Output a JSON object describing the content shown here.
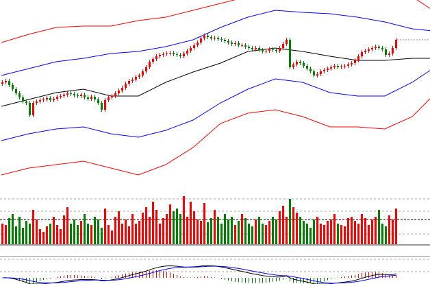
{
  "chart_data": {
    "type": "candlestick",
    "title": "",
    "grid": false,
    "colors": {
      "up": "#ff0000",
      "down": "#008000",
      "mid_band": "#000000",
      "inner_band": "#0000ff",
      "outer_band": "#ff0000",
      "dif": "#000000",
      "dea": "#0000ff",
      "last_price_line": "#888888"
    },
    "close": [
      180,
      182,
      176,
      170,
      164,
      158,
      152,
      150,
      132,
      150,
      152,
      154,
      155,
      157,
      154,
      156,
      159,
      160,
      162,
      164,
      163,
      161,
      160,
      162,
      158,
      156,
      159,
      155,
      150,
      140,
      154,
      158,
      160,
      164,
      168,
      172,
      178,
      182,
      184,
      188,
      190,
      196,
      202,
      210,
      214,
      218,
      220,
      221,
      222,
      223,
      221,
      220,
      218,
      222,
      226,
      230,
      234,
      238,
      244,
      248,
      246,
      244,
      245,
      243,
      242,
      240,
      238,
      236,
      237,
      234,
      234,
      232,
      230,
      228,
      230,
      227,
      225,
      226,
      228,
      227,
      226,
      230,
      236,
      242,
      202,
      206,
      210,
      208,
      204,
      200,
      196,
      190,
      192,
      196,
      198,
      200,
      202,
      204,
      202,
      203,
      204,
      206,
      208,
      212,
      218,
      224,
      226,
      228,
      230,
      232,
      230,
      228,
      220,
      222,
      230,
      242
    ],
    "volume": [
      30,
      28,
      38,
      44,
      26,
      40,
      24,
      34,
      30,
      50,
      36,
      22,
      18,
      26,
      30,
      40,
      28,
      22,
      42,
      54,
      30,
      36,
      28,
      34,
      44,
      30,
      28,
      40,
      36,
      24,
      52,
      28,
      20,
      40,
      48,
      30,
      36,
      26,
      44,
      30,
      34,
      46,
      54,
      40,
      62,
      50,
      30,
      38,
      44,
      58,
      48,
      52,
      44,
      70,
      40,
      62,
      48,
      36,
      34,
      60,
      32,
      38,
      50,
      40,
      30,
      44,
      36,
      40,
      28,
      34,
      44,
      38,
      30,
      26,
      36,
      40,
      30,
      28,
      34,
      40,
      36,
      48,
      56,
      40,
      66,
      54,
      46,
      40,
      34,
      30,
      24,
      36,
      40,
      30,
      28,
      34,
      36,
      44,
      30,
      28,
      26,
      38,
      40,
      34,
      30,
      44,
      38,
      28,
      36,
      40,
      50,
      30,
      26,
      42,
      36,
      52
    ],
    "bands": {
      "x_index": [
        0,
        8,
        16,
        24,
        32,
        40,
        48,
        56,
        64,
        72,
        80,
        88,
        96,
        104,
        112,
        120,
        126
      ],
      "outer_upper": [
        238,
        250,
        260,
        262,
        262,
        270,
        275,
        285,
        295,
        305,
        310,
        310,
        310,
        310,
        312,
        305,
        285
      ],
      "inner_upper": [
        190,
        200,
        210,
        215,
        222,
        225,
        232,
        242,
        260,
        275,
        285,
        282,
        280,
        275,
        268,
        258,
        255
      ],
      "middle": [
        145,
        155,
        165,
        170,
        160,
        160,
        180,
        195,
        208,
        225,
        230,
        225,
        218,
        212,
        212,
        215,
        215
      ],
      "inner_lower": [
        95,
        105,
        112,
        115,
        105,
        100,
        110,
        125,
        150,
        170,
        185,
        180,
        165,
        160,
        160,
        180,
        200
      ],
      "outer_lower": [
        45,
        55,
        60,
        65,
        55,
        45,
        60,
        85,
        120,
        135,
        140,
        130,
        115,
        115,
        112,
        130,
        160
      ]
    }
  }
}
